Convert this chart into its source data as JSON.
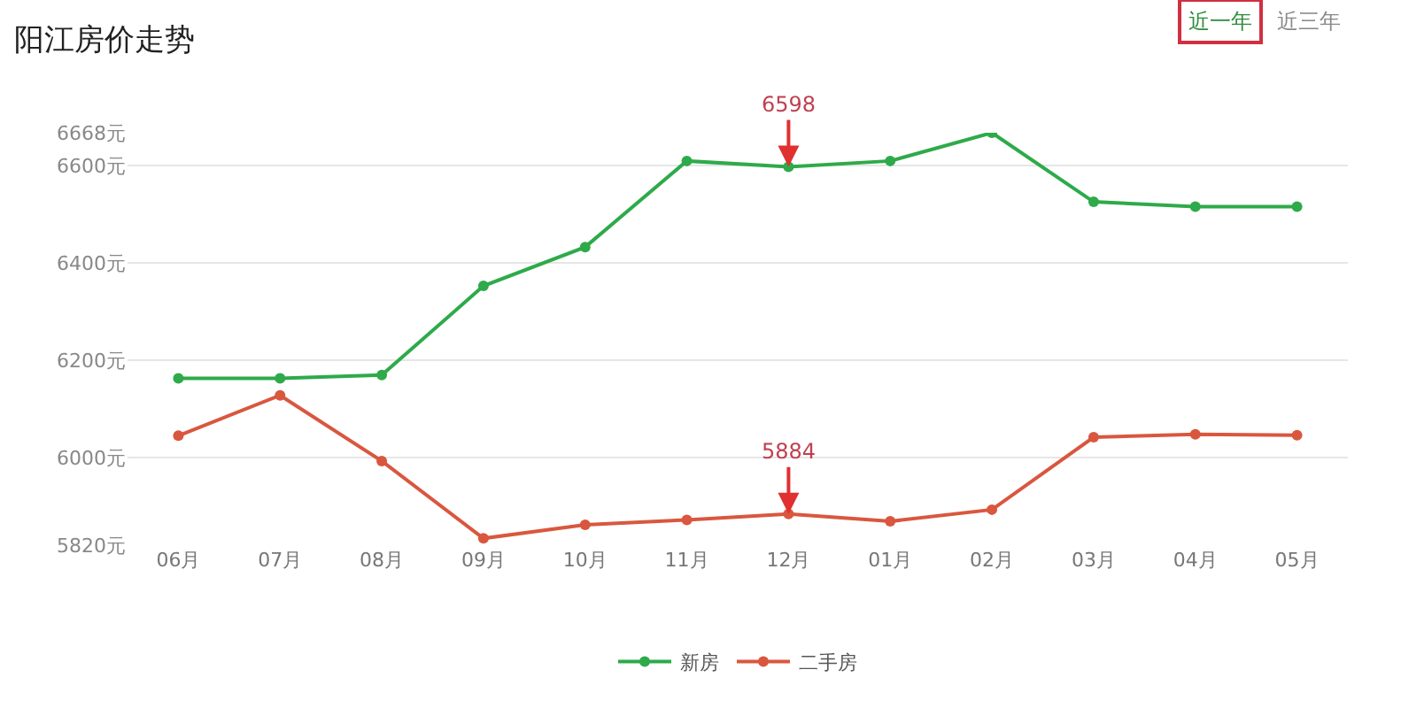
{
  "chart_data": {
    "type": "line",
    "title": "阳江房价走势",
    "categories": [
      "06月",
      "07月",
      "08月",
      "09月",
      "10月",
      "11月",
      "12月",
      "01月",
      "02月",
      "03月",
      "04月",
      "05月"
    ],
    "series": [
      {
        "name": "新房",
        "color": "#2eaa4a",
        "values": [
          6163,
          6163,
          6170,
          6353,
          6433,
          6610,
          6598,
          6610,
          6668,
          6526,
          6516,
          6516
        ]
      },
      {
        "name": "二手房",
        "color": "#d9573e",
        "values": [
          6045,
          6128,
          5993,
          5834,
          5862,
          5872,
          5884,
          5869,
          5893,
          6042,
          6048,
          6046
        ]
      }
    ],
    "ylim": [
      5820,
      6668
    ],
    "yticks": [
      {
        "value": 5820,
        "label": "5820元"
      },
      {
        "value": 6000,
        "label": "6000元"
      },
      {
        "value": 6200,
        "label": "6200元"
      },
      {
        "value": 6400,
        "label": "6400元"
      },
      {
        "value": 6600,
        "label": "6600元"
      },
      {
        "value": 6668,
        "label": "6668元"
      }
    ],
    "annotations": [
      {
        "text": "6598",
        "x": "12月",
        "y": 6598
      },
      {
        "text": "5884",
        "x": "12月",
        "y": 5884
      },
      "近一年",
      "近三年"
    ],
    "grid": "y",
    "legend": "bottom",
    "marker": "circle",
    "line_style": "solid"
  }
}
